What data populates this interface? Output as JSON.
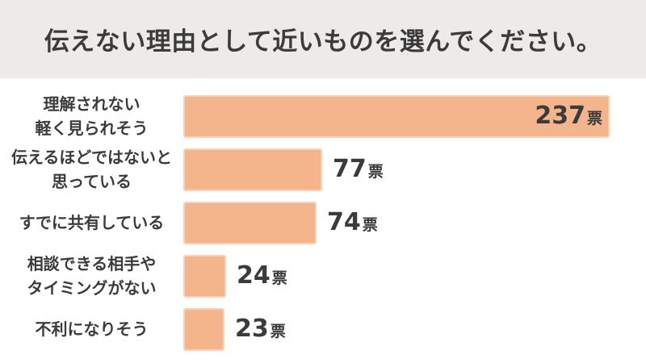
{
  "title": "伝えない理由として近いものを選んでください。",
  "colors": {
    "bar": "#F5B58C",
    "header_band": "#ECEBE9",
    "chart_background": "#FFFFFF",
    "text": "#3B3B3B"
  },
  "chart_data": {
    "type": "bar",
    "orientation": "horizontal",
    "title": "伝えない理由として近いものを選んでください。",
    "categories": [
      "理解されない\n軽く見られそう",
      "伝えるほどではないと\n思っている",
      "すでに共有している",
      "相談できる相手や\nタイミングがない",
      "不利になりそう"
    ],
    "values": [
      237,
      77,
      74,
      24,
      23
    ],
    "value_suffix": "票",
    "xlabel": "",
    "ylabel": "",
    "xlim": [
      0,
      237
    ],
    "grid": false,
    "legend": false,
    "value_label_position": [
      "inside-end",
      "outside-end",
      "outside-end",
      "outside-end",
      "outside-end"
    ]
  }
}
